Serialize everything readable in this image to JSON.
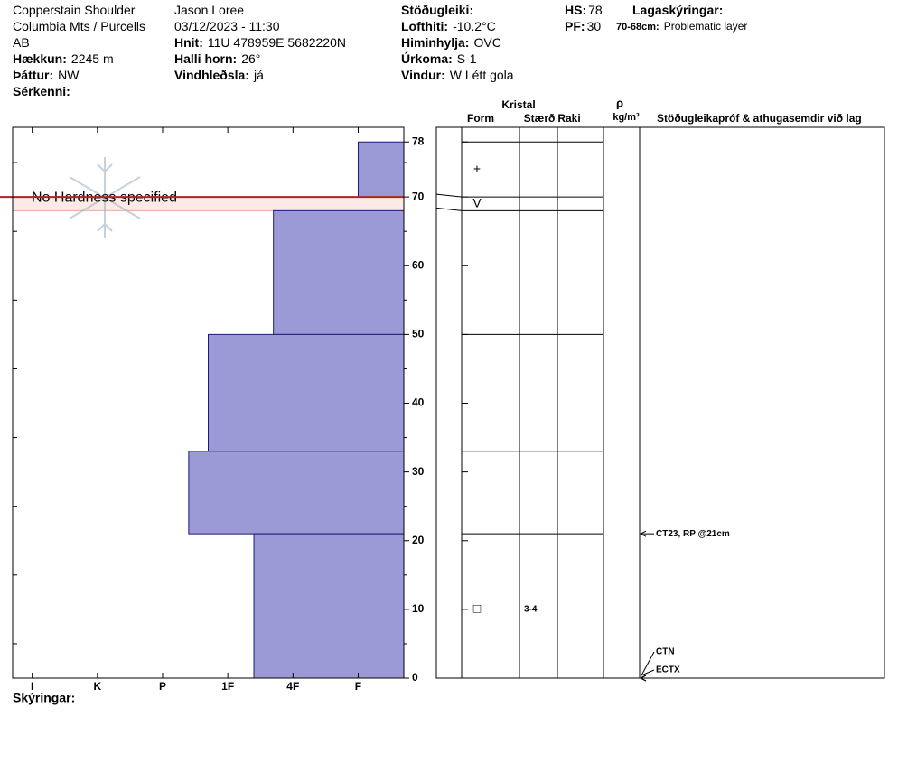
{
  "header": [
    [
      {
        "value": "Copperstain Shoulder"
      },
      {
        "value": "Columbia Mts / Purcells"
      },
      {
        "value": "AB"
      },
      {
        "label": "Hækkun:",
        "value": "2245 m"
      },
      {
        "label": "Þáttur:",
        "value": "NW"
      },
      {
        "label": "Sérkenni:"
      }
    ],
    [
      {
        "value": "Jason Loree"
      },
      {
        "value": "03/12/2023 - 11:30"
      },
      {
        "label": "Hnit:",
        "value": "11U 478959E 5682220N"
      },
      {
        "label": "Halli horn:",
        "value": "26°"
      },
      {
        "label": "Vindhleðsla:",
        "value": "já"
      }
    ],
    [
      {
        "label": "Stöðugleiki:"
      },
      {
        "label": "Lofthiti:",
        "value": "-10.2°C"
      },
      {
        "label": "Himinhylja:",
        "value": "OVC"
      },
      {
        "label": "Úrkoma:",
        "value": "S-1"
      },
      {
        "label": "Vindur:",
        "value": "W Létt gola"
      }
    ],
    [
      {
        "label": "HS:",
        "value": "78"
      },
      {
        "label": "PF:",
        "value": "30"
      }
    ],
    [
      {
        "label": "Lagaskýringar:"
      },
      {
        "label": "70-68cm:",
        "value": "Problematic layer"
      }
    ]
  ],
  "chart_data": {
    "type": "snow-profile",
    "layer_tops": [
      78,
      70,
      68,
      50,
      33,
      21
    ],
    "layer_bottoms": [
      70,
      68,
      50,
      33,
      21,
      0
    ],
    "hardness": [
      1,
      null,
      2.3,
      3.3,
      3.6,
      2.6
    ],
    "color": "#9b9ad6",
    "highlight_layer": 1,
    "highlight_color": "#fde9e6",
    "highlight_line_color": "#b22222",
    "no_hardness_label": "No Hardness specified",
    "xlim": [
      6.3,
      0.3
    ],
    "xticks": [
      {
        "value": 6,
        "label": "I"
      },
      {
        "value": 5,
        "label": "K"
      },
      {
        "value": 4,
        "label": "P"
      },
      {
        "value": 3,
        "label": "1F"
      },
      {
        "value": 2,
        "label": "4F"
      },
      {
        "value": 1,
        "label": "F"
      }
    ],
    "ylim": [
      0,
      80
    ],
    "yticks": [
      0,
      10,
      20,
      30,
      40,
      50,
      60,
      70,
      78
    ],
    "yticks_minor": [
      5,
      15,
      25,
      35,
      45,
      55,
      65,
      75
    ],
    "column_headers": {
      "crystal": "Kristal",
      "form": "Form",
      "size": "Stærð",
      "wetness": "Raki",
      "density": "ρ",
      "density_unit": "kg/m³",
      "comments": "Stöðugleikapróf & athugasemdir við lag"
    },
    "grains": [
      {
        "depth": 74,
        "form": "+"
      },
      {
        "depth": 69,
        "form": "V"
      },
      {
        "depth": 10,
        "form": "□",
        "size": "3-4"
      }
    ],
    "tests": [
      {
        "depth": 21,
        "text": "CT23, RP @21cm"
      },
      {
        "depth": 0,
        "text": "CTN"
      },
      {
        "depth": 0,
        "text": "ECTX"
      }
    ],
    "legend_label": "Skýringar:"
  }
}
